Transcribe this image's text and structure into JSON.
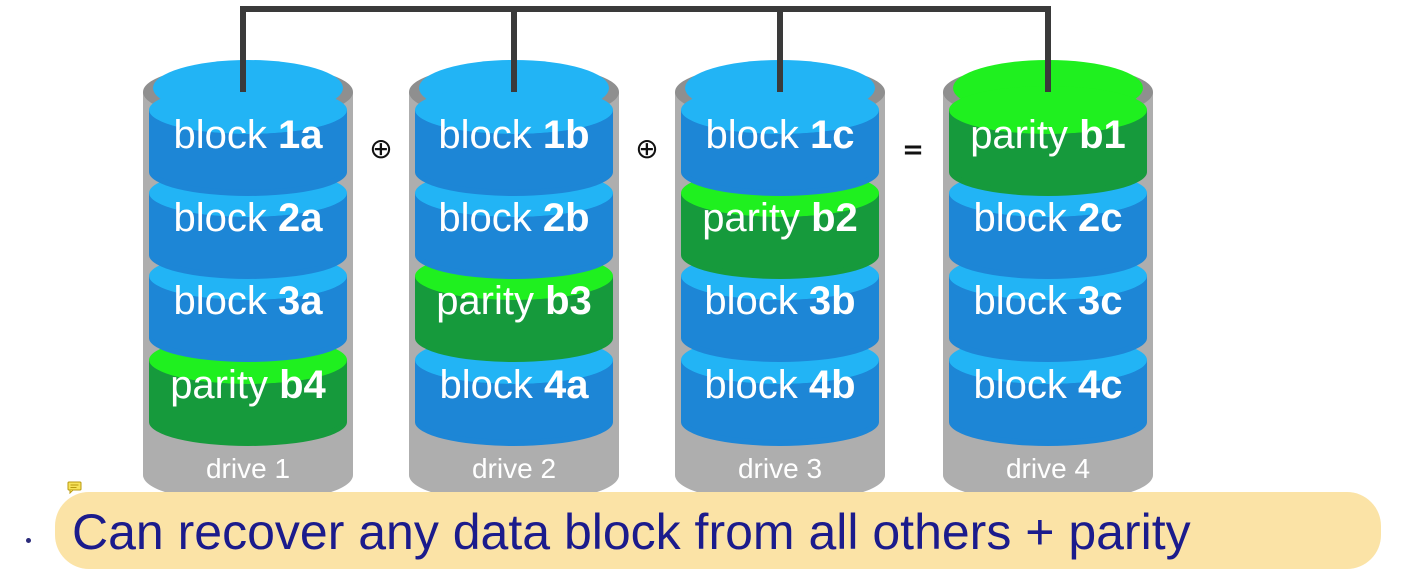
{
  "drives": [
    {
      "label": "drive 1",
      "cap": "blue",
      "blocks": [
        {
          "name": "block ",
          "id": "1a",
          "kind": "data"
        },
        {
          "name": "block ",
          "id": "2a",
          "kind": "data"
        },
        {
          "name": "block ",
          "id": "3a",
          "kind": "data"
        },
        {
          "name": "parity ",
          "id": "b4",
          "kind": "parity"
        }
      ]
    },
    {
      "label": "drive 2",
      "cap": "blue",
      "blocks": [
        {
          "name": "block ",
          "id": "1b",
          "kind": "data"
        },
        {
          "name": "block ",
          "id": "2b",
          "kind": "data"
        },
        {
          "name": "parity ",
          "id": "b3",
          "kind": "parity"
        },
        {
          "name": "block ",
          "id": "4a",
          "kind": "data"
        }
      ]
    },
    {
      "label": "drive 3",
      "cap": "blue",
      "blocks": [
        {
          "name": "block ",
          "id": "1c",
          "kind": "data"
        },
        {
          "name": "parity ",
          "id": "b2",
          "kind": "parity"
        },
        {
          "name": "block ",
          "id": "3b",
          "kind": "data"
        },
        {
          "name": "block ",
          "id": "4b",
          "kind": "data"
        }
      ]
    },
    {
      "label": "drive 4",
      "cap": "green",
      "blocks": [
        {
          "name": "parity ",
          "id": "b1",
          "kind": "parity"
        },
        {
          "name": "block ",
          "id": "2c",
          "kind": "data"
        },
        {
          "name": "block ",
          "id": "3c",
          "kind": "data"
        },
        {
          "name": "block ",
          "id": "4c",
          "kind": "data"
        }
      ]
    }
  ],
  "operators": [
    "⊕",
    "⊕",
    "="
  ],
  "caption": "Can recover any data block from all others + parity",
  "colors": {
    "data_body": "#1d86d6",
    "data_top": "#22b4f5",
    "parity_body": "#169a3c",
    "parity_top": "#1ff01f",
    "drive_gray": "#aeaeae",
    "drive_gray_dark": "#8f8f8f",
    "wire": "#3a3a3a",
    "caption_text": "#1b1b8c",
    "highlight": "#fbe3a6"
  }
}
